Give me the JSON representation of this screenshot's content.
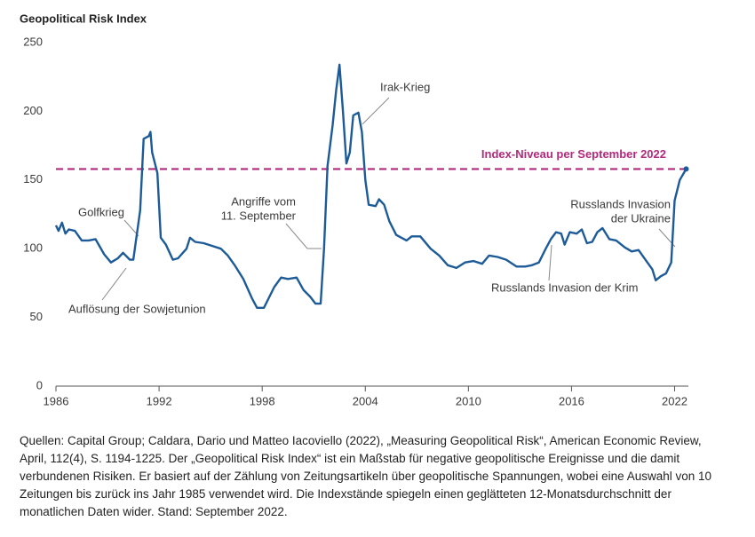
{
  "chart_data": {
    "type": "line",
    "title": "Geopolitical Risk Index",
    "x": [
      1986.0,
      1986.15,
      1986.35,
      1986.55,
      1986.75,
      1987.1,
      1987.5,
      1987.9,
      1988.3,
      1988.8,
      1989.2,
      1989.6,
      1989.9,
      1990.3,
      1990.5,
      1990.9,
      1991.1,
      1991.4,
      1991.5,
      1991.6,
      1991.9,
      1992.1,
      1992.4,
      1992.8,
      1993.1,
      1993.6,
      1993.8,
      1994.1,
      1994.6,
      1995.1,
      1995.6,
      1996.0,
      1996.4,
      1996.9,
      1997.4,
      1997.7,
      1998.1,
      1998.3,
      1998.7,
      1999.1,
      1999.5,
      2000.0,
      2000.4,
      2000.8,
      2001.1,
      2001.4,
      2001.6,
      2001.8,
      2002.1,
      2002.3,
      2002.5,
      2002.7,
      2002.9,
      2003.1,
      2003.3,
      2003.6,
      2003.8,
      2004.0,
      2004.2,
      2004.6,
      2004.8,
      2005.1,
      2005.4,
      2005.8,
      2006.4,
      2006.7,
      2007.2,
      2007.8,
      2008.3,
      2008.8,
      2009.3,
      2009.8,
      2010.3,
      2010.8,
      2011.2,
      2011.7,
      2012.2,
      2012.8,
      2013.3,
      2013.7,
      2014.1,
      2014.5,
      2014.8,
      2015.1,
      2015.4,
      2015.6,
      2015.9,
      2016.3,
      2016.6,
      2016.9,
      2017.2,
      2017.5,
      2017.8,
      2018.2,
      2018.6,
      2019.1,
      2019.5,
      2019.9,
      2020.3,
      2020.7,
      2020.9,
      2021.2,
      2021.5,
      2021.8,
      2022.0,
      2022.3,
      2022.67
    ],
    "values": [
      117,
      113,
      119,
      111,
      114,
      113,
      106,
      106,
      107,
      96,
      90,
      93,
      97,
      92,
      92,
      128,
      180,
      182,
      185,
      170,
      155,
      108,
      103,
      92,
      93,
      100,
      108,
      105,
      104,
      102,
      100,
      95,
      88,
      78,
      64,
      57,
      57,
      62,
      72,
      79,
      78,
      79,
      70,
      65,
      60,
      60,
      100,
      160,
      190,
      215,
      234,
      200,
      162,
      170,
      197,
      199,
      185,
      150,
      132,
      131,
      136,
      132,
      120,
      110,
      106,
      109,
      109,
      100,
      95,
      88,
      86,
      90,
      91,
      89,
      95,
      94,
      92,
      87,
      87,
      88,
      90,
      100,
      107,
      112,
      111,
      103,
      112,
      111,
      114,
      104,
      105,
      112,
      115,
      107,
      106,
      101,
      98,
      99,
      92,
      85,
      77,
      80,
      82,
      90,
      135,
      150,
      158
    ],
    "color": "#1d5b98",
    "xlim": [
      1986,
      2022.8
    ],
    "xticks": [
      1986,
      1992,
      1998,
      2004,
      2010,
      2016,
      2022
    ],
    "ylim": [
      0,
      250
    ],
    "yticks": [
      0,
      50,
      100,
      150,
      200,
      250
    ],
    "reference_line": {
      "value": 158,
      "label": "Index-Niveau per September 2022",
      "color": "#b12a7c"
    },
    "annotations": [
      [
        "Golfkrieg"
      ],
      [
        "Auflösung der Sowjetunion"
      ],
      [
        "Angriffe vom",
        "11. September"
      ],
      [
        "Irak-Krieg"
      ],
      [
        "Russlands Invasion",
        "der Ukraine"
      ],
      [
        "Russlands Invasion der Krim"
      ]
    ],
    "note": "Quellen: Capital Group; Caldara, Dario und Matteo Iacoviello (2022), „Measuring Geopolitical Risk“, American Economic Review, April, 112(4), S. 1194-1225. Der „Geopolitical Risk Index“ ist ein Maßstab für negative geopolitische Ereignisse und die damit verbundenen Risiken. Er basiert auf der Zählung von Zeitungsartikeln über geopolitische Spannungen, wobei eine Auswahl von 10 Zeitungen bis zurück ins Jahr 1985 verwendet wird. Die Indexstände spiegeln einen geglätteten 12-Monatsdurchschnitt der monatlichen Daten wider. Stand: September 2022."
  }
}
